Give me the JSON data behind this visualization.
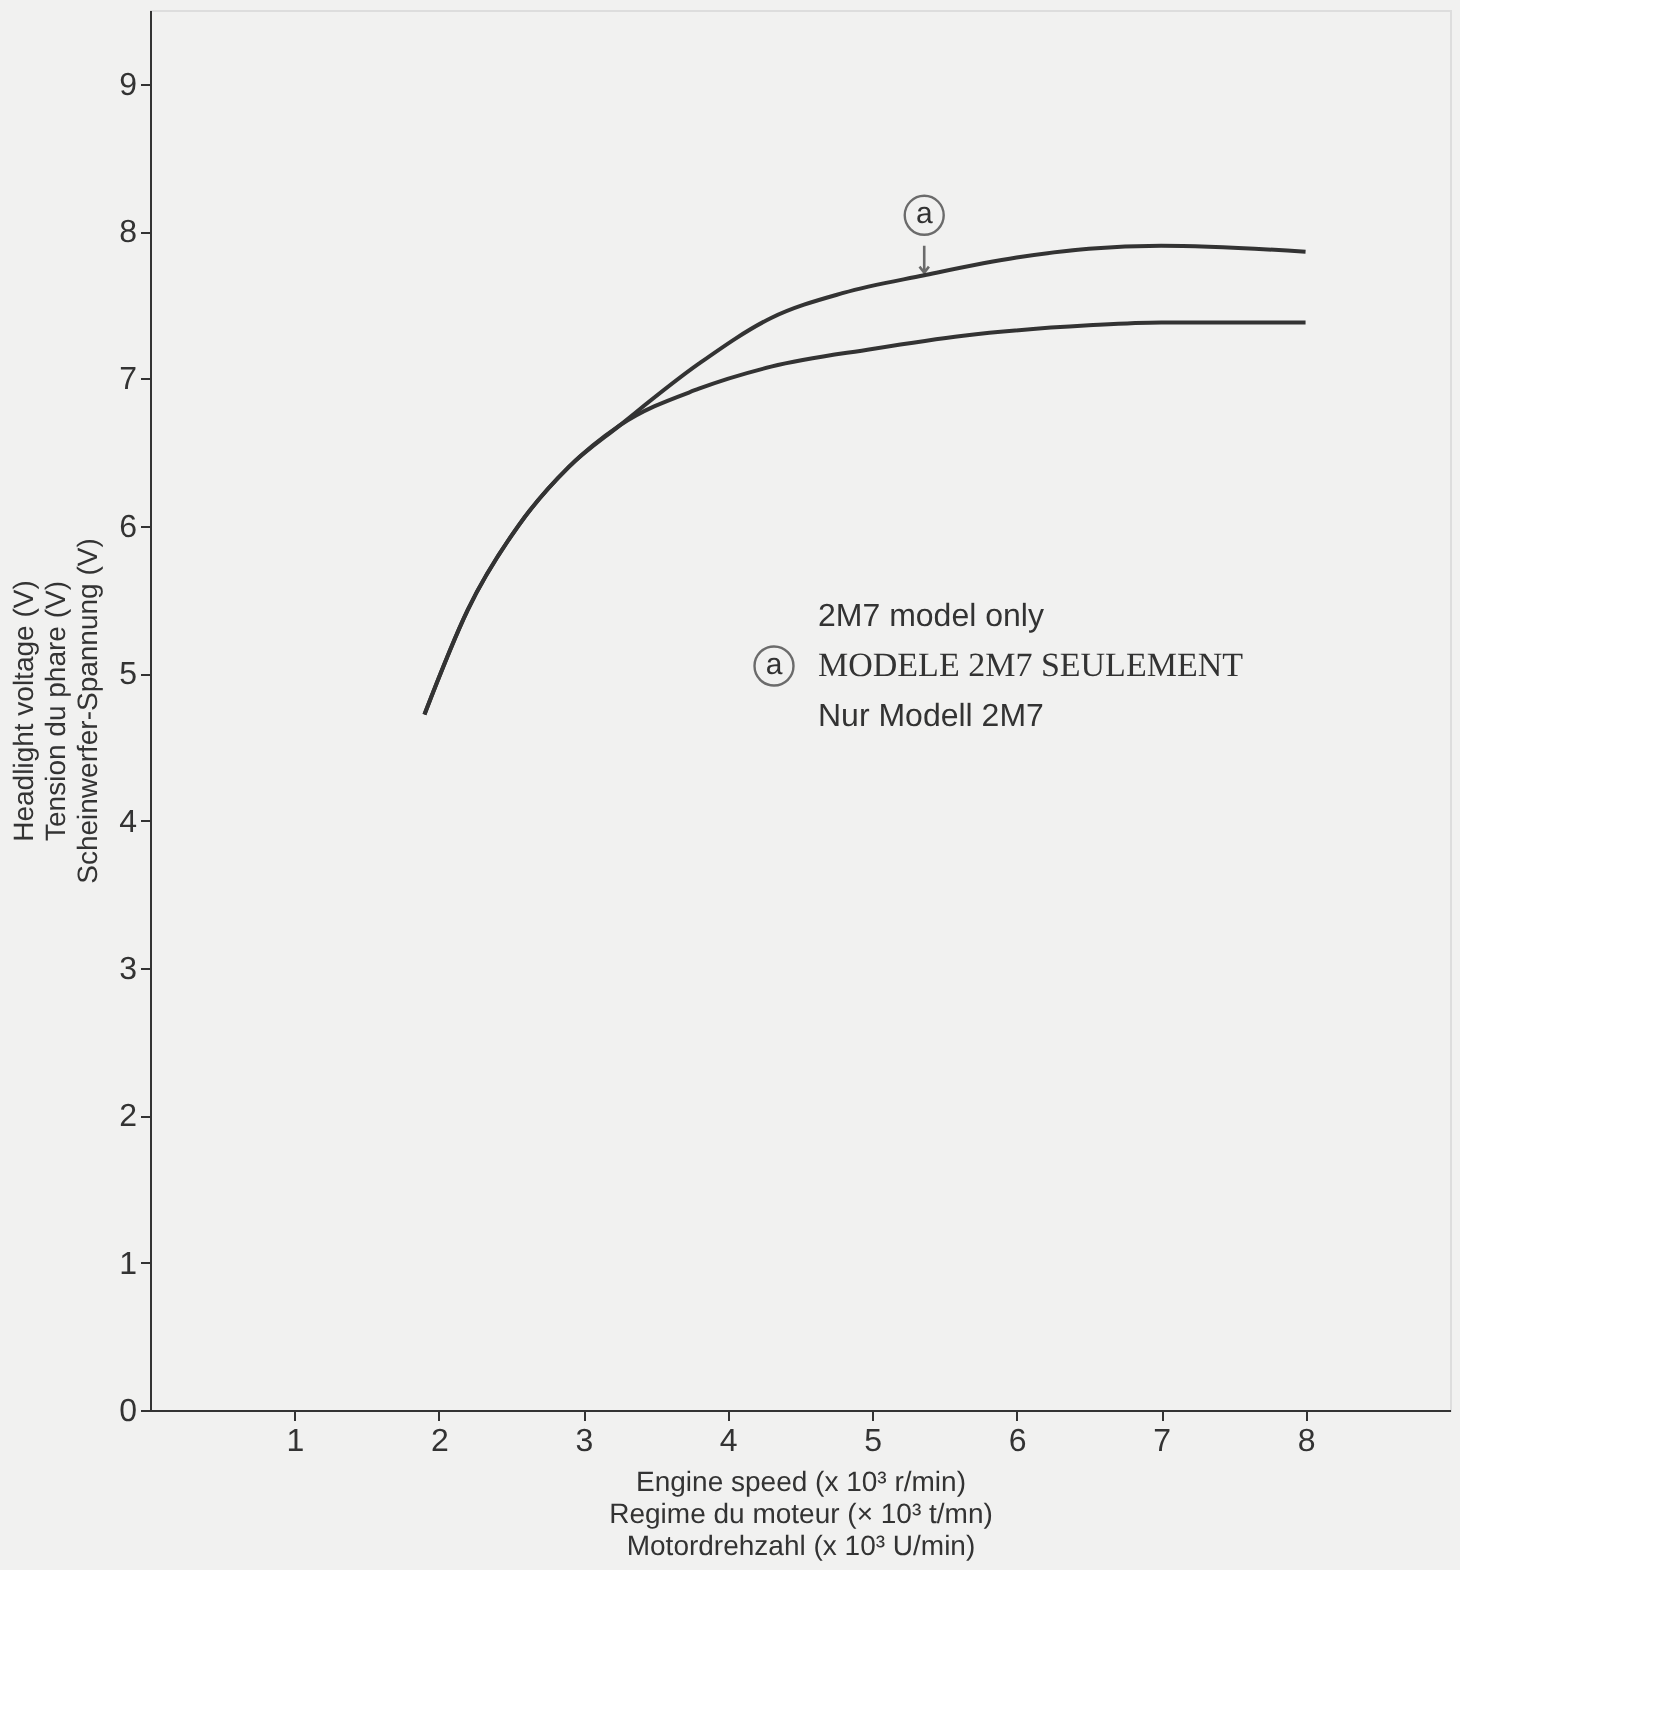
{
  "chart_data": {
    "type": "line",
    "xlabel": "Engine speed (x 10³ r/min)\nRegime du moteur (× 10³ t/mn)\nMotordrehzahl (x 10³ U/min)",
    "ylabel": "Headlight voltage (V)\nTension du phare (V)\nScheinwerfer-Spannung (V)",
    "xlim": [
      0,
      9
    ],
    "ylim": [
      0,
      9.5
    ],
    "xticks": [
      1,
      2,
      3,
      4,
      5,
      6,
      7,
      8
    ],
    "yticks": [
      0,
      1,
      2,
      3,
      4,
      5,
      6,
      7,
      8,
      9
    ],
    "marker": "none",
    "line_style": "solid",
    "grid": false,
    "series": [
      {
        "color": "#333333",
        "x": [
          1.9,
          2.2,
          2.55,
          2.9,
          3.25,
          3.8,
          4.3,
          4.8,
          5.36,
          6.0,
          6.5,
          7.0,
          8.0
        ],
        "values": [
          4.72,
          5.43,
          6.0,
          6.4,
          6.68,
          7.1,
          7.41,
          7.58,
          7.7,
          7.82,
          7.88,
          7.9,
          7.86
        ]
      },
      {
        "color": "#333333",
        "x": [
          1.9,
          2.2,
          2.55,
          2.9,
          3.25,
          3.8,
          4.3,
          5.0,
          5.63,
          6.5,
          7.0,
          8.0
        ],
        "values": [
          4.72,
          5.43,
          6.0,
          6.4,
          6.68,
          6.93,
          7.08,
          7.2,
          7.29,
          7.36,
          7.38,
          7.38
        ]
      }
    ],
    "annotations": [
      {
        "text": "a",
        "x": 5.36,
        "y": 7.7
      },
      "a",
      "2M7 model only",
      "MODELE 2M7 SEULEMENT",
      "Nur Modell 2M7"
    ]
  }
}
